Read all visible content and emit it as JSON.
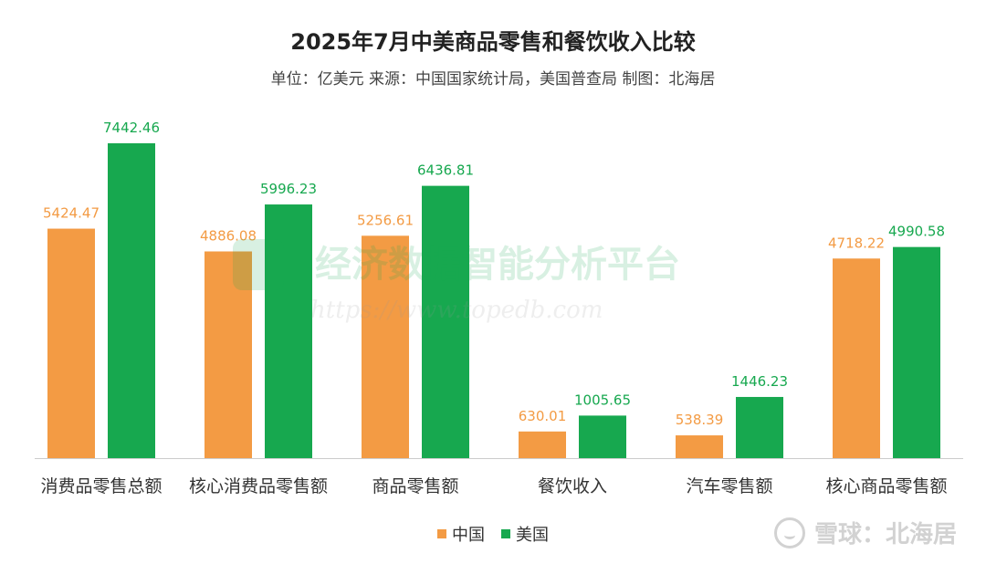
{
  "title": "2025年7月中美商品零售和餐饮收入比较",
  "subtitle": "单位：亿美元 来源：中国国家统计局，美国普查局 制图：北海居",
  "watermark": {
    "text": "雪球：北海居",
    "icon": "snowball-logo-icon",
    "overlay_text": "经济数据智能分析平台",
    "overlay_url": "https://www.topedb.com"
  },
  "colors": {
    "china": "#F39B44",
    "usa": "#17A84F"
  },
  "chart_data": {
    "type": "bar",
    "title": "2025年7月中美商品零售和餐饮收入比较",
    "categories": [
      "消费品零售总额",
      "核心消费品零售额",
      "商品零售额",
      "餐饮收入",
      "汽车零售额",
      "核心商品零售额"
    ],
    "series": [
      {
        "name": "中国",
        "values": [
          5424.47,
          4886.08,
          5256.61,
          630.01,
          538.39,
          4718.22
        ]
      },
      {
        "name": "美国",
        "values": [
          7442.46,
          5996.23,
          6436.81,
          1005.65,
          1446.23,
          4990.58
        ]
      }
    ],
    "value_labels": [
      [
        "5424.47",
        "4886.08",
        "5256.61",
        "630.01",
        "538.39",
        "4718.22"
      ],
      [
        "7442.46",
        "5996.23",
        "6436.81",
        "1005.65",
        "1446.23",
        "4990.58"
      ]
    ],
    "xlabel": "",
    "ylabel": "",
    "ylim": [
      0,
      7442.46
    ],
    "grid": false,
    "legend_position": "bottom"
  }
}
